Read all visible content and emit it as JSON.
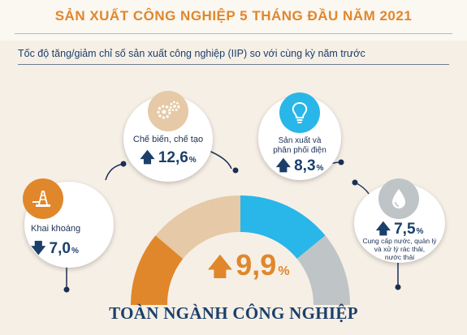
{
  "header": {
    "title": "SẢN XUẤT CÔNG NGHIỆP 5 THÁNG ĐẦU NĂM 2021",
    "subtitle": "Tốc độ tăng/giảm chỉ số sản xuất công nghiệp (IIP) so với cùng kỳ năm trước"
  },
  "sectors": [
    {
      "label": "Khai khoáng",
      "value": "7,0",
      "unit": "%",
      "direction": "down",
      "icon": "oil-rig-icon",
      "color": "#e0872c"
    },
    {
      "label": "Chế biến, chế tạo",
      "value": "12,6",
      "unit": "%",
      "direction": "up",
      "icon": "gears-icon",
      "color": "#e6c9a6"
    },
    {
      "label_line1": "Sản xuất và",
      "label_line2": "phân phối điện",
      "value": "8,3",
      "unit": "%",
      "direction": "up",
      "icon": "lightbulb-icon",
      "color": "#29b6e8"
    },
    {
      "label_line1": "Cung cấp nước, quản lý",
      "label_line2": "và xử lý rác thải,",
      "label_line3": "nước thải",
      "value": "7,5",
      "unit": "%",
      "direction": "up",
      "icon": "water-drop-icon",
      "color": "#bfc4c7"
    }
  ],
  "overall": {
    "value": "9,9",
    "unit": "%",
    "direction": "up",
    "label": "TOÀN NGÀNH CÔNG NGHIỆP"
  },
  "symbols": {
    "up": "🡅",
    "down": "🡇"
  },
  "colors": {
    "title": "#e0872c",
    "navy": "#1b3f6a",
    "mining": "#e0872c",
    "manufacturing": "#e6c9a6",
    "electricity": "#29b6e8",
    "water": "#bfc4c7"
  }
}
